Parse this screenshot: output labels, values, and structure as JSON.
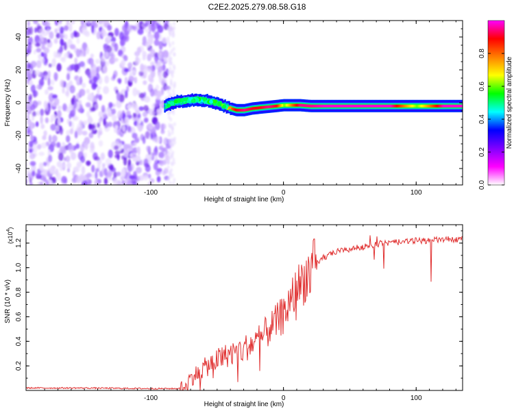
{
  "title": "C2E2.2025.279.08.58.G18",
  "chart_data": [
    {
      "type": "heatmap",
      "name": "spectrogram",
      "xlabel": "Height of straight line (km)",
      "ylabel": "Frequency (Hz)",
      "xlim": [
        -194,
        135
      ],
      "ylim": [
        -50,
        50
      ],
      "xticks": [
        -100,
        0,
        100
      ],
      "xtick_labels": [
        "-100",
        "0",
        "100"
      ],
      "yticks": [
        -40,
        -20,
        0,
        20,
        40
      ],
      "ytick_labels": [
        "-40",
        "-20",
        "0",
        "20",
        "40"
      ],
      "colorbar": {
        "label": "Normalized spectral amplitude",
        "range": [
          0,
          1
        ],
        "ticks": [
          0.0,
          0.2,
          0.4,
          0.6,
          0.8
        ],
        "tick_labels": [
          "0.0",
          "0.2",
          "0.4",
          "0.6",
          "0.8"
        ],
        "colors": [
          "#ffffff",
          "#ff00ff",
          "#8000ff",
          "#0000ff",
          "#00ffff",
          "#00ff00",
          "#ffff00",
          "#ff8000",
          "#ff0000",
          "#ff00ff"
        ]
      },
      "noise_region_x": [
        -194,
        -87
      ],
      "signal_line": {
        "x": [
          -90,
          -84,
          -78,
          -72,
          -66,
          -60,
          -54,
          -48,
          -42,
          -36,
          -30,
          -24,
          -18,
          -12,
          -6,
          0,
          6,
          12,
          20,
          30,
          50,
          80,
          100,
          120,
          135
        ],
        "freq": [
          -2,
          0,
          1,
          1.5,
          2,
          1.5,
          0.5,
          -1,
          -3,
          -4.5,
          -4.5,
          -3.5,
          -3,
          -2.5,
          -2,
          -1.5,
          -1.5,
          -1.5,
          -2,
          -2,
          -2,
          -2,
          -2,
          -2,
          -2
        ],
        "amp": [
          0.35,
          0.45,
          0.5,
          0.5,
          0.5,
          0.45,
          0.5,
          0.6,
          0.75,
          0.9,
          0.95,
          0.9,
          0.9,
          0.95,
          0.9,
          0.6,
          0.8,
          0.95,
          0.95,
          0.98,
          0.98,
          0.98,
          0.6,
          0.98,
          0.98
        ]
      }
    },
    {
      "type": "line",
      "name": "snr",
      "xlabel": "Height of straight line (km)",
      "ylabel": "SNR (10 * v/v)",
      "multiplier_label": "(x10",
      "multiplier_exp": "4",
      "multiplier_close": ")",
      "xlim": [
        -194,
        135
      ],
      "ylim": [
        0,
        1.35
      ],
      "xticks": [
        -100,
        0,
        100
      ],
      "xtick_labels": [
        "-100",
        "0",
        "100"
      ],
      "yticks": [
        0.2,
        0.4,
        0.6,
        0.8,
        1.0,
        1.2
      ],
      "ytick_labels": [
        "0.2",
        "0.4",
        "0.6",
        "0.8",
        "1.0",
        "1.2"
      ],
      "color": "#e03030",
      "x": [
        -194,
        -150,
        -100,
        -80,
        -75,
        -70,
        -60,
        -50,
        -40,
        -30,
        -20,
        -10,
        0,
        10,
        20,
        30,
        40,
        50,
        60,
        70,
        80,
        90,
        100,
        110,
        120,
        135
      ],
      "trend": [
        0.02,
        0.02,
        0.015,
        0.015,
        0.03,
        0.1,
        0.18,
        0.25,
        0.3,
        0.34,
        0.4,
        0.5,
        0.62,
        0.82,
        0.98,
        1.08,
        1.13,
        1.15,
        1.17,
        1.19,
        1.2,
        1.21,
        1.22,
        1.22,
        1.23,
        1.23
      ]
    }
  ]
}
